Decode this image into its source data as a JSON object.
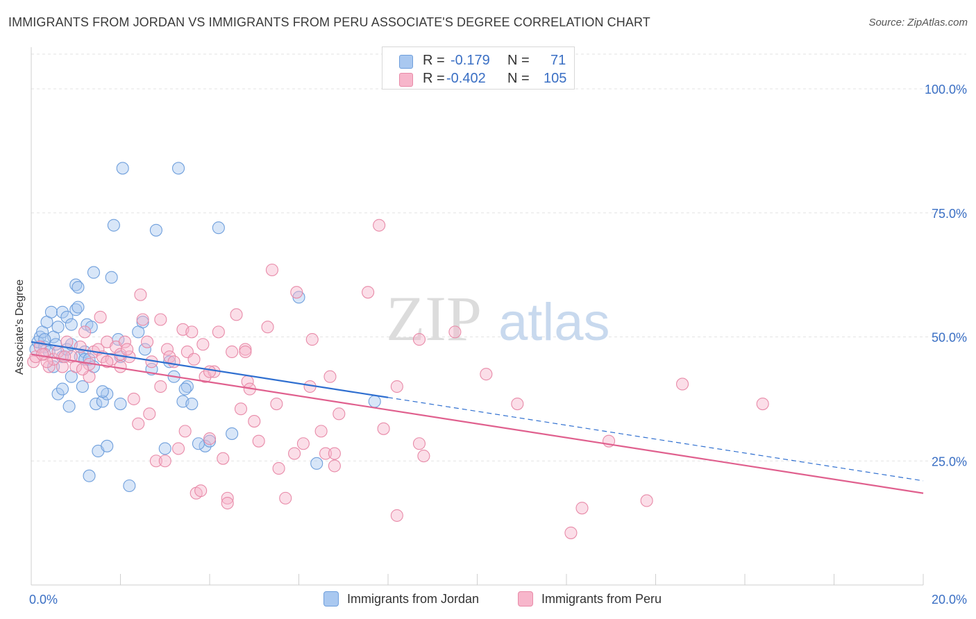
{
  "title": "IMMIGRANTS FROM JORDAN VS IMMIGRANTS FROM PERU ASSOCIATE'S DEGREE CORRELATION CHART",
  "source": "Source: ZipAtlas.com",
  "watermark": {
    "zip": "ZIP",
    "atlas": "atlas"
  },
  "colors": {
    "jordan_fill": "#a9c8f0",
    "jordan_stroke": "#6f9fdc",
    "jordan_line": "#2f6fd0",
    "peru_fill": "#f7b6cb",
    "peru_stroke": "#e88aa8",
    "peru_line": "#e0608e",
    "axis_label": "#3a6fc4",
    "grid": "#e3e3e3"
  },
  "stats_legend": {
    "r_label": "R =",
    "n_label": "N =",
    "rows": [
      {
        "r": "-0.179",
        "n": "71"
      },
      {
        "r": "-0.402",
        "n": "105"
      }
    ]
  },
  "chart_data": {
    "type": "scatter",
    "title": "IMMIGRANTS FROM JORDAN VS IMMIGRANTS FROM PERU ASSOCIATE'S DEGREE CORRELATION CHART",
    "xlabel": "",
    "ylabel": "Associate's Degree",
    "xlim": [
      0,
      20
    ],
    "ylim": [
      0,
      107
    ],
    "x_tick_labels": [
      "0.0%",
      "20.0%"
    ],
    "y_ticks": [
      25,
      50,
      75,
      100
    ],
    "y_tick_labels": [
      "25.0%",
      "50.0%",
      "75.0%",
      "100.0%"
    ],
    "grid": true,
    "legend_position": "bottom-center",
    "series": [
      {
        "name": "Immigrants from Jordan",
        "trend": {
          "x0": 0,
          "y0": 49.0,
          "x1": 8.0,
          "y1": 37.8,
          "dashed_to_x": 20,
          "dashed_to_y": 21.0
        },
        "points": [
          [
            0.1,
            47.5
          ],
          [
            0.15,
            49
          ],
          [
            0.2,
            50
          ],
          [
            0.25,
            51
          ],
          [
            0.3,
            48
          ],
          [
            0.35,
            53
          ],
          [
            0.4,
            47
          ],
          [
            0.45,
            55
          ],
          [
            0.5,
            50
          ],
          [
            0.5,
            44
          ],
          [
            0.6,
            52
          ],
          [
            0.6,
            38.5
          ],
          [
            0.7,
            46
          ],
          [
            0.7,
            39.5
          ],
          [
            0.7,
            55
          ],
          [
            0.8,
            54
          ],
          [
            0.8,
            47.5
          ],
          [
            0.85,
            36
          ],
          [
            0.9,
            48.5
          ],
          [
            0.9,
            52.5
          ],
          [
            1.0,
            55.5
          ],
          [
            1.0,
            60.5
          ],
          [
            1.05,
            56
          ],
          [
            1.05,
            60
          ],
          [
            1.1,
            46
          ],
          [
            1.15,
            40
          ],
          [
            1.2,
            47
          ],
          [
            1.2,
            45.5
          ],
          [
            1.25,
            52.5
          ],
          [
            1.3,
            22
          ],
          [
            1.3,
            45.5
          ],
          [
            1.35,
            52
          ],
          [
            1.4,
            44
          ],
          [
            1.4,
            63
          ],
          [
            1.45,
            36.5
          ],
          [
            1.5,
            27
          ],
          [
            1.6,
            37
          ],
          [
            1.7,
            28
          ],
          [
            1.7,
            38.5
          ],
          [
            1.8,
            62
          ],
          [
            1.85,
            72.5
          ],
          [
            1.95,
            49.5
          ],
          [
            2.0,
            46
          ],
          [
            2.0,
            36.5
          ],
          [
            2.05,
            84
          ],
          [
            2.2,
            20
          ],
          [
            2.5,
            53
          ],
          [
            2.55,
            47.5
          ],
          [
            2.7,
            43.5
          ],
          [
            2.8,
            71.5
          ],
          [
            3.0,
            27.5
          ],
          [
            3.1,
            45
          ],
          [
            3.2,
            42
          ],
          [
            3.4,
            37
          ],
          [
            3.5,
            40
          ],
          [
            3.6,
            36.5
          ],
          [
            3.3,
            84
          ],
          [
            3.9,
            28
          ],
          [
            4.0,
            29
          ],
          [
            4.2,
            72
          ],
          [
            4.5,
            30.5
          ],
          [
            6.0,
            58
          ],
          [
            6.4,
            24.5
          ],
          [
            7.7,
            37
          ],
          [
            0.3,
            49.5
          ],
          [
            0.9,
            42
          ],
          [
            0.55,
            48.5
          ],
          [
            3.75,
            28.5
          ],
          [
            3.45,
            39.5
          ],
          [
            2.4,
            51
          ],
          [
            1.6,
            39
          ]
        ]
      },
      {
        "name": "Immigrants from Peru",
        "trend": {
          "x0": 0,
          "y0": 46.5,
          "x1": 20,
          "y1": 18.5
        },
        "points": [
          [
            0.05,
            45
          ],
          [
            0.1,
            46
          ],
          [
            0.2,
            48
          ],
          [
            0.3,
            46.5
          ],
          [
            0.4,
            44
          ],
          [
            0.5,
            45.5
          ],
          [
            0.6,
            47
          ],
          [
            0.7,
            44
          ],
          [
            0.8,
            49
          ],
          [
            0.9,
            46
          ],
          [
            1.0,
            44
          ],
          [
            1.1,
            48
          ],
          [
            1.2,
            51
          ],
          [
            1.3,
            44.5
          ],
          [
            1.3,
            42
          ],
          [
            1.4,
            47
          ],
          [
            1.5,
            47.5
          ],
          [
            1.55,
            54
          ],
          [
            1.6,
            46
          ],
          [
            1.7,
            49
          ],
          [
            1.8,
            45.5
          ],
          [
            1.9,
            48
          ],
          [
            2.0,
            44
          ],
          [
            2.1,
            49
          ],
          [
            2.2,
            46
          ],
          [
            2.3,
            37.5
          ],
          [
            2.4,
            32.5
          ],
          [
            2.45,
            58.5
          ],
          [
            2.5,
            53.5
          ],
          [
            2.6,
            49
          ],
          [
            2.65,
            34.5
          ],
          [
            2.7,
            45
          ],
          [
            2.8,
            25
          ],
          [
            2.9,
            53.5
          ],
          [
            3.0,
            25
          ],
          [
            3.05,
            47.5
          ],
          [
            3.1,
            46
          ],
          [
            3.2,
            45
          ],
          [
            3.3,
            27.5
          ],
          [
            3.4,
            51.5
          ],
          [
            3.45,
            31
          ],
          [
            3.5,
            47
          ],
          [
            3.6,
            51
          ],
          [
            3.7,
            18.5
          ],
          [
            3.8,
            19
          ],
          [
            3.85,
            48.5
          ],
          [
            3.9,
            42
          ],
          [
            4.0,
            29.5
          ],
          [
            4.1,
            43
          ],
          [
            4.2,
            51
          ],
          [
            4.3,
            25.5
          ],
          [
            4.4,
            17.5
          ],
          [
            4.4,
            16.5
          ],
          [
            4.5,
            47
          ],
          [
            4.6,
            54.5
          ],
          [
            4.7,
            35.5
          ],
          [
            4.8,
            47.5
          ],
          [
            4.85,
            41
          ],
          [
            4.9,
            39.5
          ],
          [
            5.0,
            33
          ],
          [
            5.1,
            29
          ],
          [
            5.3,
            52
          ],
          [
            5.4,
            63.5
          ],
          [
            5.5,
            36.5
          ],
          [
            5.55,
            23.5
          ],
          [
            5.7,
            17.5
          ],
          [
            5.9,
            26.5
          ],
          [
            5.95,
            59
          ],
          [
            6.1,
            28.5
          ],
          [
            6.3,
            49.5
          ],
          [
            6.5,
            31
          ],
          [
            6.6,
            26.5
          ],
          [
            6.7,
            42
          ],
          [
            6.8,
            24
          ],
          [
            6.9,
            34.5
          ],
          [
            7.55,
            59
          ],
          [
            7.8,
            72.5
          ],
          [
            7.9,
            31.5
          ],
          [
            8.2,
            40
          ],
          [
            8.2,
            14
          ],
          [
            8.7,
            28.5
          ],
          [
            8.8,
            26
          ],
          [
            8.7,
            49.5
          ],
          [
            9.5,
            51
          ],
          [
            10.2,
            42.5
          ],
          [
            10.9,
            36.5
          ],
          [
            12.35,
            15.5
          ],
          [
            12.1,
            10.5
          ],
          [
            12.95,
            29
          ],
          [
            13.8,
            17
          ],
          [
            14.6,
            40.5
          ],
          [
            16.4,
            36.5
          ],
          [
            2.9,
            40
          ],
          [
            4.8,
            47
          ],
          [
            1.7,
            45
          ],
          [
            0.35,
            45
          ],
          [
            1.15,
            43.5
          ],
          [
            3.65,
            45.5
          ],
          [
            6.25,
            40
          ],
          [
            2.0,
            46.5
          ],
          [
            0.25,
            46.5
          ],
          [
            0.75,
            46
          ],
          [
            4.0,
            43
          ],
          [
            6.8,
            26.5
          ],
          [
            2.15,
            47.5
          ]
        ]
      }
    ]
  }
}
